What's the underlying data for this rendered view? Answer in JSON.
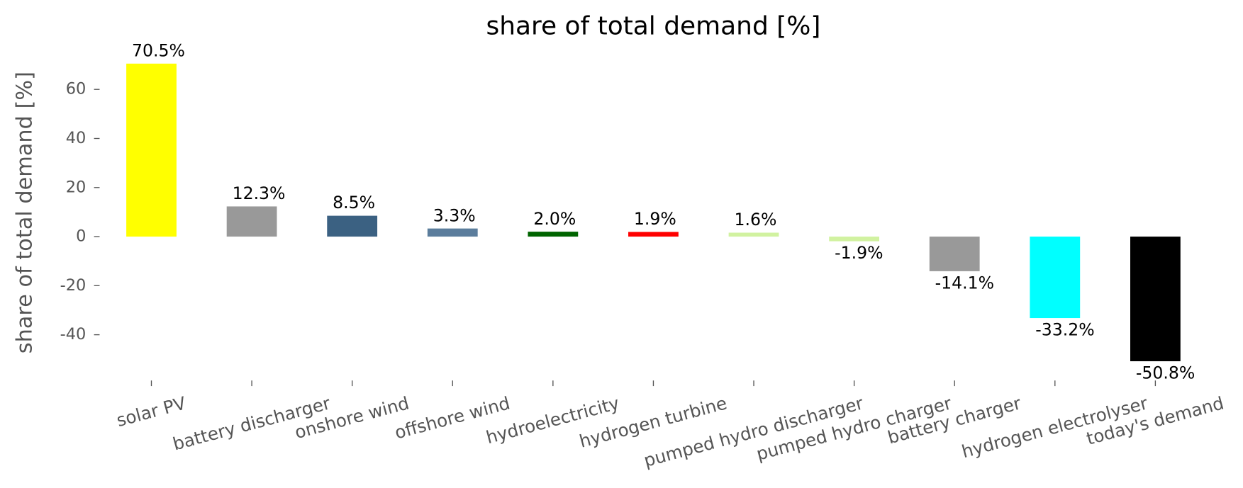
{
  "chart_data": {
    "type": "bar",
    "title": "share of total demand [%]",
    "ylabel": "share of total demand [%]",
    "categories": [
      "solar PV",
      "battery discharger",
      "onshore wind",
      "offshore wind",
      "hydroelectricity",
      "hydrogen turbine",
      "pumped hydro discharger",
      "pumped hydro charger",
      "battery charger",
      "hydrogen electrolyser",
      "today's demand"
    ],
    "values": [
      70.5,
      12.3,
      8.5,
      3.3,
      2.0,
      1.9,
      1.6,
      -1.9,
      -14.1,
      -33.2,
      -50.8
    ],
    "value_labels": [
      "70.5%",
      "12.3%",
      "8.5%",
      "3.3%",
      "2.0%",
      "1.9%",
      "1.6%",
      "-1.9%",
      "-14.1%",
      "-33.2%",
      "-50.8%"
    ],
    "colors": [
      "#ffff00",
      "#999999",
      "#3b6182",
      "#5b7d9c",
      "#006400",
      "#ff0000",
      "#d1f2a0",
      "#d1f2a0",
      "#999999",
      "#00ffff",
      "#000000"
    ],
    "ylim": [
      -58,
      75
    ],
    "yticks": [
      -40,
      -20,
      0,
      20,
      40,
      60
    ],
    "grid": false
  }
}
